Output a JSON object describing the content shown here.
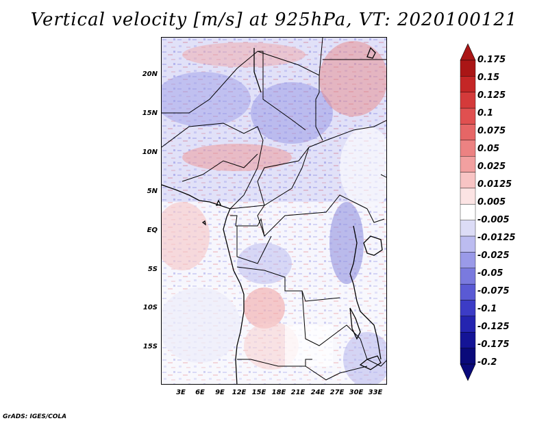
{
  "title": "Vertical velocity [m/s] at 925hPa, VT: 2020100121",
  "footer": "GrADS: IGES/COLA",
  "axes": {
    "lat_labels": [
      "20N",
      "15N",
      "10N",
      "5N",
      "EQ",
      "5S",
      "10S",
      "15S"
    ],
    "lon_labels": [
      "3E",
      "6E",
      "9E",
      "12E",
      "15E",
      "18E",
      "21E",
      "24E",
      "27E",
      "30E",
      "33E"
    ]
  },
  "colorbar": {
    "labels": [
      "0.175",
      "0.15",
      "0.125",
      "0.1",
      "0.075",
      "0.05",
      "0.025",
      "0.0125",
      "0.005",
      "-0.005",
      "-0.0125",
      "-0.025",
      "-0.05",
      "-0.075",
      "-0.1",
      "-0.125",
      "-0.175",
      "-0.2"
    ],
    "colors": [
      "#aa1616",
      "#c42626",
      "#d43a3a",
      "#e05050",
      "#e66666",
      "#ec8282",
      "#f2a0a0",
      "#f8c4c4",
      "#fce4e4",
      "#ffffff",
      "#dcdcf6",
      "#bcbcf0",
      "#9a9ae8",
      "#7a7ade",
      "#5a5ad4",
      "#3c3cc6",
      "#2424b0",
      "#141496",
      "#0a0a7a"
    ]
  },
  "map": {
    "region": "Central Africa",
    "lon_range": [
      0,
      34.5
    ],
    "lat_range": [
      -19.5,
      24.5
    ],
    "field": "vertical velocity",
    "level": "925hPa"
  }
}
